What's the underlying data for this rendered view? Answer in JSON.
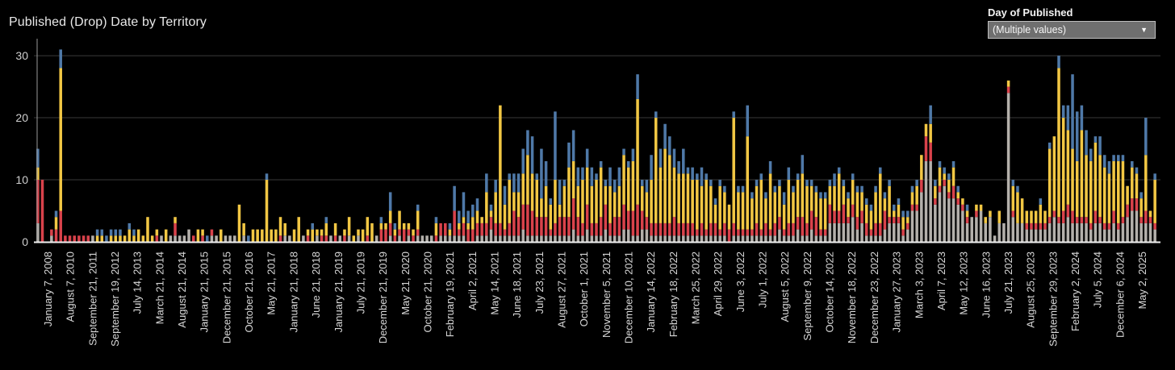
{
  "header": {
    "title": "Published (Drop) Date by Territory"
  },
  "filter": {
    "label": "Day of Published",
    "value": "(Multiple values)"
  },
  "colors": {
    "grey": "#b4b0ab",
    "red": "#d9424b",
    "yellow": "#f2c744",
    "blue": "#4f79a8",
    "background": "#000000",
    "gridline": "#3a3a3a",
    "axis": "#cfcfcf"
  },
  "chart_data": {
    "type": "bar",
    "stacked": true,
    "title": "Published (Drop) Date by Territory",
    "xlabel": "",
    "ylabel": "",
    "ylim": [
      0,
      33
    ],
    "yticks": [
      0,
      10,
      20,
      30
    ],
    "stack_order": [
      "grey",
      "red",
      "yellow",
      "blue"
    ],
    "series_colors": {
      "grey": "#b4b0ab",
      "red": "#d9424b",
      "yellow": "#f2c744",
      "blue": "#4f79a8"
    },
    "bars": [
      [
        3,
        7,
        2,
        3
      ],
      [
        0,
        10,
        0,
        0
      ],
      [
        0,
        0,
        0,
        0
      ],
      [
        1,
        1,
        0,
        0
      ],
      [
        0,
        2,
        2,
        1
      ],
      [
        0,
        5,
        23,
        3
      ],
      [
        0,
        1,
        0,
        0
      ],
      [
        0,
        1,
        0,
        0
      ],
      [
        0,
        1,
        0,
        0
      ],
      [
        0,
        1,
        0,
        0
      ],
      [
        0,
        1,
        0,
        0
      ],
      [
        0,
        1,
        0,
        0
      ],
      [
        1,
        0,
        0,
        0
      ],
      [
        0,
        0,
        1,
        1
      ],
      [
        0,
        0,
        1,
        1
      ],
      [
        0,
        0,
        0,
        1
      ],
      [
        0,
        0,
        1,
        1
      ],
      [
        0,
        0,
        1,
        1
      ],
      [
        0,
        0,
        1,
        1
      ],
      [
        0,
        0,
        1,
        0
      ],
      [
        0,
        0,
        2,
        1
      ],
      [
        0,
        0,
        1,
        1
      ],
      [
        0,
        0,
        2,
        0
      ],
      [
        0,
        0,
        1,
        0
      ],
      [
        0,
        0,
        4,
        0
      ],
      [
        0,
        0,
        1,
        0
      ],
      [
        0,
        1,
        1,
        0
      ],
      [
        1,
        0,
        0,
        0
      ],
      [
        0,
        0,
        2,
        0
      ],
      [
        1,
        0,
        0,
        0
      ],
      [
        1,
        2,
        1,
        0
      ],
      [
        1,
        0,
        0,
        0
      ],
      [
        1,
        0,
        0,
        0
      ],
      [
        2,
        0,
        0,
        0
      ],
      [
        0,
        1,
        0,
        0
      ],
      [
        0,
        0,
        2,
        0
      ],
      [
        0,
        1,
        1,
        0
      ],
      [
        0,
        0,
        0,
        1
      ],
      [
        1,
        1,
        0,
        0
      ],
      [
        1,
        0,
        0,
        0
      ],
      [
        0,
        0,
        2,
        0
      ],
      [
        1,
        0,
        0,
        0
      ],
      [
        1,
        0,
        0,
        0
      ],
      [
        1,
        0,
        0,
        0
      ],
      [
        0,
        0,
        6,
        0
      ],
      [
        1,
        0,
        2,
        0
      ],
      [
        0,
        0,
        0,
        1
      ],
      [
        0,
        0,
        2,
        0
      ],
      [
        0,
        0,
        2,
        0
      ],
      [
        0,
        0,
        2,
        0
      ],
      [
        0,
        0,
        10,
        1
      ],
      [
        0,
        0,
        2,
        0
      ],
      [
        0,
        0,
        2,
        0
      ],
      [
        0,
        1,
        3,
        0
      ],
      [
        1,
        0,
        2,
        0
      ],
      [
        1,
        0,
        0,
        0
      ],
      [
        0,
        0,
        2,
        0
      ],
      [
        0,
        0,
        4,
        0
      ],
      [
        1,
        0,
        0,
        0
      ],
      [
        0,
        1,
        1,
        0
      ],
      [
        0,
        0,
        2,
        1
      ],
      [
        1,
        0,
        1,
        0
      ],
      [
        0,
        1,
        1,
        0
      ],
      [
        0,
        1,
        2,
        1
      ],
      [
        1,
        0,
        0,
        0
      ],
      [
        0,
        1,
        2,
        0
      ],
      [
        1,
        0,
        0,
        0
      ],
      [
        0,
        1,
        1,
        0
      ],
      [
        1,
        0,
        3,
        0
      ],
      [
        0,
        0,
        1,
        0
      ],
      [
        1,
        0,
        1,
        0
      ],
      [
        0,
        0,
        2,
        0
      ],
      [
        0,
        1,
        3,
        0
      ],
      [
        0,
        0,
        3,
        0
      ],
      [
        1,
        0,
        0,
        0
      ],
      [
        0,
        2,
        1,
        1
      ],
      [
        0,
        2,
        1,
        0
      ],
      [
        1,
        2,
        2,
        3
      ],
      [
        0,
        1,
        1,
        1
      ],
      [
        1,
        1,
        3,
        0
      ],
      [
        0,
        2,
        1,
        0
      ],
      [
        1,
        1,
        1,
        0
      ],
      [
        0,
        1,
        1,
        0
      ],
      [
        1,
        1,
        3,
        1
      ],
      [
        1,
        0,
        0,
        0
      ],
      [
        1,
        0,
        0,
        0
      ],
      [
        1,
        0,
        0,
        0
      ],
      [
        0,
        1,
        2,
        1
      ],
      [
        1,
        2,
        0,
        0
      ],
      [
        1,
        2,
        0,
        0
      ],
      [
        1,
        0,
        1,
        1
      ],
      [
        1,
        4,
        0,
        4
      ],
      [
        1,
        1,
        1,
        2
      ],
      [
        1,
        2,
        1,
        4
      ],
      [
        0,
        2,
        1,
        2
      ],
      [
        0,
        2,
        2,
        2
      ],
      [
        1,
        2,
        2,
        2
      ],
      [
        1,
        2,
        1,
        0
      ],
      [
        1,
        2,
        5,
        3
      ],
      [
        2,
        2,
        1,
        1
      ],
      [
        1,
        2,
        5,
        2
      ],
      [
        1,
        2,
        19,
        0
      ],
      [
        1,
        1,
        4,
        3
      ],
      [
        1,
        2,
        7,
        1
      ],
      [
        1,
        4,
        3,
        3
      ],
      [
        1,
        3,
        4,
        3
      ],
      [
        2,
        4,
        5,
        4
      ],
      [
        1,
        5,
        8,
        4
      ],
      [
        1,
        4,
        6,
        6
      ],
      [
        1,
        3,
        6,
        1
      ],
      [
        1,
        3,
        3,
        8
      ],
      [
        1,
        3,
        5,
        4
      ],
      [
        1,
        1,
        4,
        1
      ],
      [
        1,
        2,
        7,
        11
      ],
      [
        1,
        3,
        2,
        4
      ],
      [
        1,
        3,
        5,
        1
      ],
      [
        1,
        3,
        8,
        4
      ],
      [
        2,
        5,
        6,
        5
      ],
      [
        1,
        3,
        5,
        3
      ],
      [
        1,
        2,
        7,
        2
      ],
      [
        2,
        4,
        6,
        3
      ],
      [
        1,
        2,
        6,
        3
      ],
      [
        1,
        2,
        7,
        1
      ],
      [
        1,
        3,
        8,
        1
      ],
      [
        2,
        4,
        3,
        1
      ],
      [
        1,
        2,
        6,
        3
      ],
      [
        1,
        3,
        4,
        2
      ],
      [
        1,
        3,
        5,
        3
      ],
      [
        2,
        4,
        8,
        1
      ],
      [
        2,
        3,
        7,
        1
      ],
      [
        1,
        4,
        8,
        2
      ],
      [
        1,
        5,
        17,
        4
      ],
      [
        2,
        3,
        4,
        1
      ],
      [
        2,
        2,
        4,
        2
      ],
      [
        1,
        2,
        7,
        4
      ],
      [
        1,
        2,
        17,
        1
      ],
      [
        1,
        2,
        9,
        3
      ],
      [
        1,
        2,
        12,
        4
      ],
      [
        1,
        2,
        11,
        3
      ],
      [
        1,
        3,
        8,
        3
      ],
      [
        1,
        2,
        8,
        2
      ],
      [
        1,
        2,
        8,
        4
      ],
      [
        1,
        2,
        8,
        1
      ],
      [
        1,
        2,
        7,
        2
      ],
      [
        1,
        1,
        8,
        1
      ],
      [
        1,
        2,
        6,
        3
      ],
      [
        1,
        1,
        8,
        1
      ],
      [
        1,
        2,
        6,
        1
      ],
      [
        1,
        2,
        3,
        1
      ],
      [
        1,
        1,
        7,
        1
      ],
      [
        1,
        2,
        5,
        1
      ],
      [
        0,
        2,
        4,
        0
      ],
      [
        1,
        2,
        17,
        1
      ],
      [
        1,
        1,
        6,
        1
      ],
      [
        1,
        1,
        6,
        1
      ],
      [
        1,
        1,
        15,
        5
      ],
      [
        1,
        1,
        5,
        1
      ],
      [
        1,
        2,
        6,
        1
      ],
      [
        1,
        1,
        8,
        1
      ],
      [
        1,
        2,
        4,
        1
      ],
      [
        1,
        1,
        9,
        2
      ],
      [
        1,
        2,
        5,
        1
      ],
      [
        2,
        2,
        5,
        1
      ],
      [
        1,
        1,
        4,
        2
      ],
      [
        1,
        2,
        7,
        2
      ],
      [
        1,
        2,
        5,
        1
      ],
      [
        2,
        2,
        6,
        1
      ],
      [
        1,
        3,
        7,
        3
      ],
      [
        1,
        2,
        6,
        1
      ],
      [
        2,
        3,
        4,
        1
      ],
      [
        1,
        3,
        4,
        1
      ],
      [
        1,
        1,
        5,
        1
      ],
      [
        1,
        1,
        5,
        1
      ],
      [
        3,
        3,
        3,
        1
      ],
      [
        3,
        2,
        4,
        2
      ],
      [
        3,
        2,
        6,
        1
      ],
      [
        3,
        3,
        3,
        1
      ],
      [
        3,
        1,
        3,
        1
      ],
      [
        4,
        2,
        4,
        1
      ],
      [
        2,
        2,
        4,
        1
      ],
      [
        3,
        2,
        3,
        1
      ],
      [
        1,
        2,
        3,
        1
      ],
      [
        1,
        1,
        3,
        1
      ],
      [
        1,
        2,
        5,
        1
      ],
      [
        1,
        2,
        8,
        1
      ],
      [
        2,
        3,
        2,
        1
      ],
      [
        3,
        1,
        5,
        1
      ],
      [
        3,
        1,
        1,
        1
      ],
      [
        3,
        1,
        2,
        1
      ],
      [
        1,
        1,
        2,
        1
      ],
      [
        2,
        1,
        1,
        1
      ],
      [
        5,
        1,
        2,
        1
      ],
      [
        5,
        1,
        3,
        1
      ],
      [
        8,
        2,
        4,
        0
      ],
      [
        13,
        4,
        2,
        0
      ],
      [
        13,
        3,
        3,
        3
      ],
      [
        6,
        1,
        2,
        1
      ],
      [
        8,
        1,
        3,
        1
      ],
      [
        9,
        1,
        1,
        1
      ],
      [
        7,
        1,
        2,
        1
      ],
      [
        7,
        2,
        3,
        1
      ],
      [
        6,
        1,
        1,
        1
      ],
      [
        5,
        1,
        1,
        0
      ],
      [
        3,
        1,
        1,
        1
      ],
      [
        4,
        0,
        0,
        0
      ],
      [
        4,
        1,
        1,
        0
      ],
      [
        5,
        0,
        1,
        0
      ],
      [
        3,
        0,
        1,
        0
      ],
      [
        4,
        0,
        1,
        0
      ],
      [
        1,
        0,
        0,
        0
      ],
      [
        3,
        0,
        2,
        0
      ],
      [
        3,
        0,
        0,
        0
      ],
      [
        24,
        1,
        1,
        0
      ],
      [
        4,
        1,
        4,
        1
      ],
      [
        3,
        0,
        5,
        1
      ],
      [
        3,
        0,
        4,
        0
      ],
      [
        2,
        1,
        2,
        0
      ],
      [
        2,
        1,
        2,
        0
      ],
      [
        2,
        1,
        2,
        0
      ],
      [
        2,
        1,
        3,
        1
      ],
      [
        2,
        1,
        2,
        0
      ],
      [
        3,
        1,
        11,
        1
      ],
      [
        4,
        1,
        12,
        0
      ],
      [
        3,
        1,
        24,
        2
      ],
      [
        3,
        2,
        15,
        2
      ],
      [
        4,
        2,
        12,
        4
      ],
      [
        3,
        2,
        10,
        12
      ],
      [
        3,
        1,
        9,
        8
      ],
      [
        3,
        1,
        14,
        4
      ],
      [
        3,
        1,
        10,
        4
      ],
      [
        2,
        1,
        10,
        2
      ],
      [
        3,
        2,
        11,
        1
      ],
      [
        3,
        1,
        10,
        3
      ],
      [
        2,
        1,
        9,
        2
      ],
      [
        2,
        1,
        8,
        2
      ],
      [
        3,
        2,
        8,
        1
      ],
      [
        2,
        1,
        10,
        1
      ],
      [
        3,
        1,
        9,
        1
      ],
      [
        4,
        2,
        3,
        0
      ],
      [
        5,
        2,
        5,
        1
      ],
      [
        5,
        2,
        4,
        1
      ],
      [
        3,
        1,
        3,
        1
      ],
      [
        3,
        2,
        9,
        6
      ],
      [
        3,
        1,
        1,
        0
      ],
      [
        2,
        1,
        7,
        1
      ]
    ],
    "x_tick_labels": [
      "January 7, 2008",
      "August 7, 2010",
      "September 21, 2011",
      "September 19, 2012",
      "July 14, 2013",
      "March 21, 2014",
      "August 21, 2014",
      "January 21, 2015",
      "December 21, 2015",
      "October 21, 2016",
      "May 21, 2017",
      "January 21, 2018",
      "June 21, 2018",
      "January 21, 2019",
      "July 21, 2019",
      "December 21, 2019",
      "May 21, 2020",
      "October 21, 2020",
      "February 19, 2021",
      "April 2, 2021",
      "May 14, 2021",
      "June 18, 2021",
      "July 23, 2021",
      "August 27, 2021",
      "October 1, 2021",
      "November 5, 2021",
      "December 10, 2021",
      "January 14, 2022",
      "February 18, 2022",
      "March 25, 2022",
      "April 29, 2022",
      "June 3, 2022",
      "July 1, 2022",
      "August 5, 2022",
      "September 9, 2022",
      "October 14, 2022",
      "November 18, 2022",
      "December 23, 2022",
      "January 27, 2023",
      "March 3, 2023",
      "April 7, 2023",
      "May 12, 2023",
      "June 16, 2023",
      "July 21, 2023",
      "August 25, 2023",
      "September 29, 2023",
      "February 2, 2024",
      "July 5, 2024",
      "December 6, 2024",
      "May 2, 2025"
    ]
  }
}
